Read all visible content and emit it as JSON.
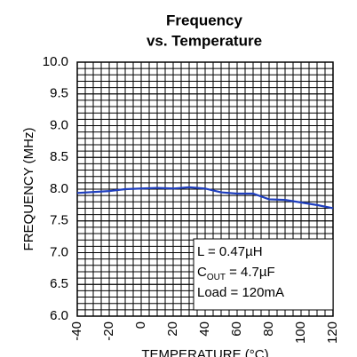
{
  "chart_data": {
    "type": "line",
    "title": "Frequency",
    "subtitle": "vs. Temperature",
    "x_label": "TEMPERATURE (°C)",
    "y_label": "FREQUENCY (MHz)",
    "x": [
      -40,
      -20,
      -10,
      0,
      10,
      20,
      30,
      40,
      50,
      60,
      70,
      80,
      90,
      100,
      110,
      120
    ],
    "series": [
      {
        "name": "Frequency",
        "color": "#1f3fbf",
        "values": [
          7.94,
          7.97,
          8.0,
          8.01,
          8.02,
          8.01,
          8.03,
          8.01,
          7.95,
          7.93,
          7.93,
          7.84,
          7.83,
          7.79,
          7.75,
          7.7
        ]
      }
    ],
    "xlim": [
      -40,
      120
    ],
    "xticks": [
      -40,
      -20,
      0,
      20,
      40,
      60,
      80,
      100,
      120
    ],
    "ylim": [
      6,
      10
    ],
    "yticks": [
      {
        "value": 6,
        "label": "6.0"
      },
      6.5,
      {
        "value": 7,
        "label": "7.0"
      },
      7.5,
      {
        "value": 8,
        "label": "8.0"
      },
      8.5,
      {
        "value": 9,
        "label": "9.0"
      },
      9.5,
      {
        "value": 10,
        "label": "10.0"
      }
    ],
    "grid": true,
    "minor_grid": {
      "x": 5,
      "y": 0.1
    },
    "annotations": [
      {
        "text": "L = 0.47µH"
      },
      {
        "text": "C",
        "sub": "OUT",
        "rest": " = 4.7µF"
      },
      {
        "text": "Load = 120mA"
      }
    ]
  }
}
